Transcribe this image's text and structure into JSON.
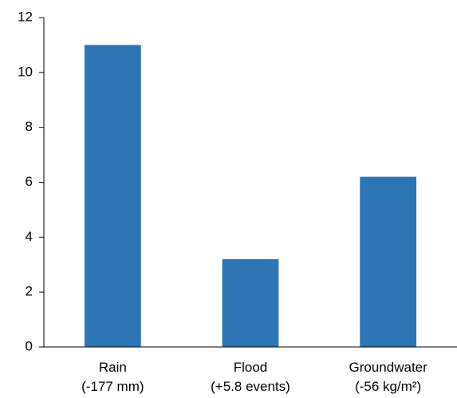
{
  "chart_data": {
    "type": "bar",
    "categories": [
      "Rain\n(-177 mm)",
      "Flood\n(+5.8 events)",
      "Groundwater\n(-56 kg/m²)"
    ],
    "values": [
      11,
      3.2,
      6.2
    ],
    "color": "#2e75b6",
    "ylim": [
      0,
      12
    ],
    "yticks": [
      0,
      2,
      4,
      6,
      8,
      10,
      12
    ],
    "grid": false
  }
}
